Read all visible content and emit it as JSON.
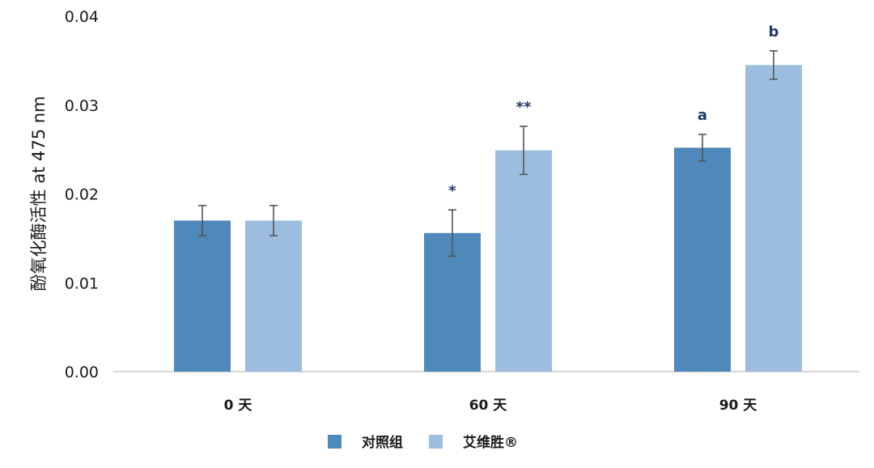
{
  "chart_data": {
    "type": "bar",
    "title": "",
    "xlabel": "",
    "ylabel": "酚氧化酶活性 at 475 nm",
    "ylim": [
      0,
      0.04
    ],
    "yticks": [
      {
        "value": 0.0,
        "label": "0.00"
      },
      {
        "value": 0.01,
        "label": "0.01"
      },
      {
        "value": 0.02,
        "label": "0.02"
      },
      {
        "value": 0.03,
        "label": "0.03"
      },
      {
        "value": 0.04,
        "label": "0.04"
      }
    ],
    "categories": [
      "0 天",
      "60 天",
      "90 天"
    ],
    "grid": false,
    "legend_position": "bottom",
    "series": [
      {
        "name": "对照组",
        "color": "#4f88bb",
        "values": [
          0.017,
          0.0156,
          0.0252
        ],
        "errors": [
          0.0017,
          0.0026,
          0.0015
        ],
        "annotations": [
          "",
          "*",
          "a"
        ]
      },
      {
        "name": "艾维胜®",
        "color": "#9dbde0",
        "values": [
          0.017,
          0.0249,
          0.0345
        ],
        "errors": [
          0.0017,
          0.0027,
          0.0016
        ],
        "annotations": [
          "",
          "**",
          "b"
        ]
      }
    ]
  }
}
